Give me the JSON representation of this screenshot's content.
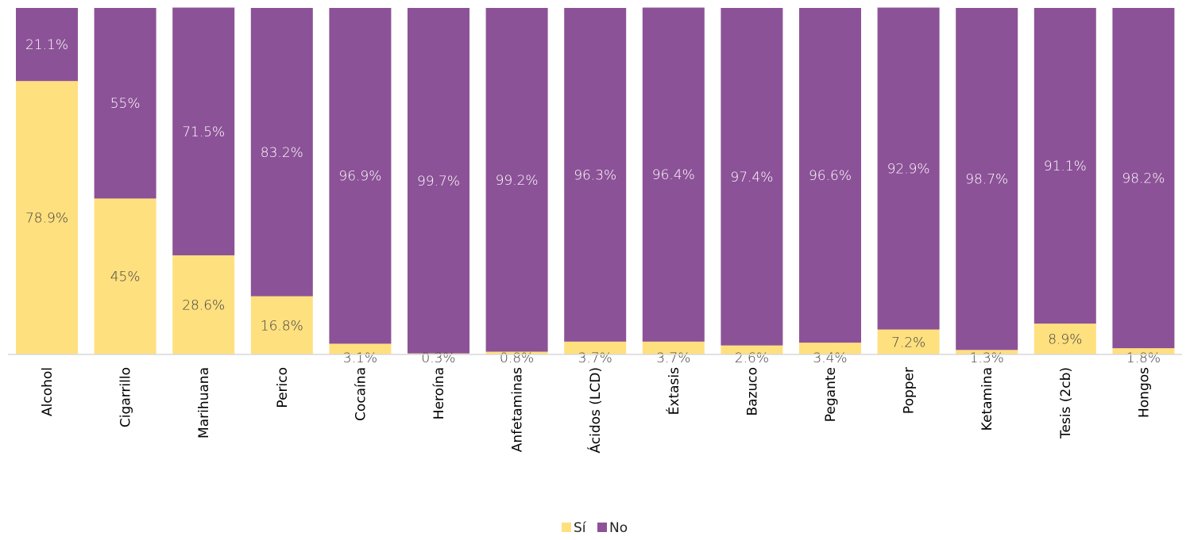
{
  "chart_data": {
    "type": "bar",
    "stacked": true,
    "categories": [
      "Alcohol",
      "Cigarrillo",
      "Marihuana",
      "Perico",
      "Cocaína",
      "Heroína",
      "Anfetaminas",
      "Ácidos (LCD)",
      "Éxtasis",
      "Bazuco",
      "Pegante",
      "Popper",
      "Ketamina",
      "Tesis (2cb)",
      "Hongos"
    ],
    "series": [
      {
        "name": "Sí",
        "color": "#FFE07F",
        "values": [
          78.9,
          45,
          28.6,
          16.8,
          3.1,
          0.3,
          0.8,
          3.7,
          3.7,
          2.6,
          3.4,
          7.2,
          1.3,
          8.9,
          1.8
        ],
        "labels": [
          "78.9%",
          "45%",
          "28.6%",
          "16.8%",
          "3.1%",
          "0.3%",
          "0.8%",
          "3.7%",
          "3.7%",
          "2.6%",
          "3.4%",
          "7.2%",
          "1.3%",
          "8.9%",
          "1.8%"
        ]
      },
      {
        "name": "No",
        "color": "#8C5297",
        "values": [
          21.1,
          55,
          71.5,
          83.2,
          96.9,
          99.7,
          99.2,
          96.3,
          96.4,
          97.4,
          96.6,
          92.9,
          98.7,
          91.1,
          98.2
        ],
        "labels": [
          "21.1%",
          "55%",
          "71.5%",
          "83.2%",
          "96.9%",
          "99.7%",
          "99.2%",
          "96.3%",
          "96.4%",
          "97.4%",
          "96.6%",
          "92.9%",
          "98.7%",
          "91.1%",
          "98.2%"
        ]
      }
    ],
    "ylim": [
      0,
      100
    ],
    "grid": false,
    "legend_position": "bottom",
    "label_color": "#404040",
    "axis_color": "#D9D9D9"
  }
}
